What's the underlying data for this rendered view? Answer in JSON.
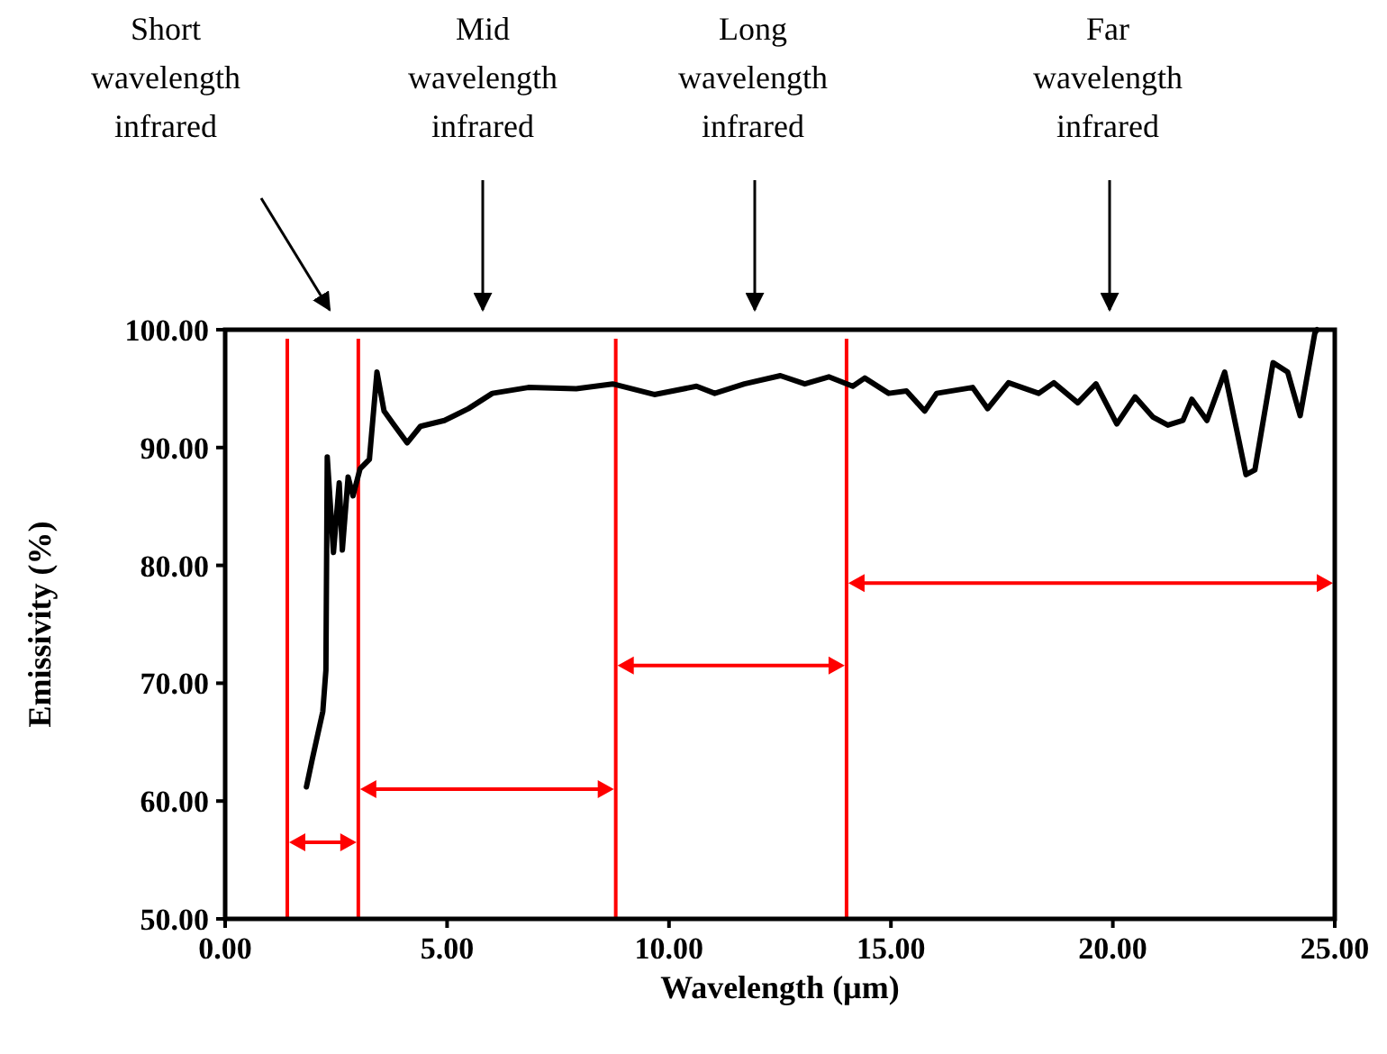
{
  "chart_data": {
    "type": "line",
    "xlabel": "Wavelength (µm)",
    "ylabel": "Emissivity (%)",
    "annotations": [
      "Short wavelength infrared",
      "Mid wavelength infrared",
      "Long wavelength infrared",
      "Far wavelength infrared"
    ],
    "xlim": [
      0,
      25
    ],
    "ylim": [
      50,
      100
    ],
    "xticks": [
      {
        "value": 0,
        "label": "0.00"
      },
      {
        "value": 5,
        "label": "5.00"
      },
      {
        "value": 10,
        "label": "10.00"
      },
      {
        "value": 15,
        "label": "15.00"
      },
      {
        "value": 20,
        "label": "20.00"
      },
      {
        "value": 25,
        "label": "25.00"
      }
    ],
    "yticks": [
      {
        "value": 50,
        "label": "50.00"
      },
      {
        "value": 60,
        "label": "60.00"
      },
      {
        "value": 70,
        "label": "70.00"
      },
      {
        "value": 80,
        "label": "80.00"
      },
      {
        "value": 90,
        "label": "90.00"
      },
      {
        "value": 100,
        "label": "100.00"
      }
    ],
    "grid": false,
    "marker": "none",
    "line_style": "solid",
    "ref_lines": [
      {
        "axis": "x",
        "value": 1.4,
        "color": "#ff0000"
      },
      {
        "axis": "x",
        "value": 3,
        "color": "#ff0000"
      },
      {
        "axis": "x",
        "value": 8.8,
        "color": "#ff0000"
      },
      {
        "axis": "x",
        "value": 14,
        "color": "#ff0000"
      }
    ],
    "series": [
      {
        "color": "#000000",
        "x": [
          1.83,
          1.96,
          2.2,
          2.27,
          2.3,
          2.44,
          2.57,
          2.64,
          2.77,
          2.88,
          3.04,
          3.25,
          3.42,
          3.58,
          3.79,
          4.1,
          4.4,
          4.94,
          5.48,
          6.02,
          6.83,
          7.91,
          8.73,
          9.67,
          10.62,
          11.03,
          11.7,
          12.51,
          13.06,
          13.6,
          14.14,
          14.41,
          14.95,
          15.35,
          15.76,
          16.03,
          16.84,
          17.18,
          17.65,
          18.33,
          18.67,
          19.21,
          19.62,
          20.09,
          20.5,
          20.9,
          21.24,
          21.58,
          21.78,
          22.12,
          22.52,
          23.0,
          23.2,
          23.61,
          23.94,
          24.22,
          24.55,
          24.6
        ],
        "values": [
          61.2,
          63.5,
          67.6,
          71.1,
          89.2,
          81.1,
          87.0,
          81.3,
          87.5,
          85.9,
          88.2,
          89.0,
          96.4,
          93.1,
          92.0,
          90.4,
          91.8,
          92.3,
          93.3,
          94.6,
          95.1,
          95.0,
          95.4,
          94.5,
          95.2,
          94.6,
          95.4,
          96.1,
          95.4,
          96.0,
          95.2,
          95.9,
          94.6,
          94.8,
          93.1,
          94.6,
          95.1,
          93.3,
          95.5,
          94.6,
          95.5,
          93.8,
          95.4,
          92.0,
          94.3,
          92.6,
          91.9,
          92.3,
          94.1,
          92.3,
          96.4,
          87.7,
          88.1,
          97.2,
          96.4,
          92.7,
          99.7,
          100
        ]
      }
    ]
  }
}
